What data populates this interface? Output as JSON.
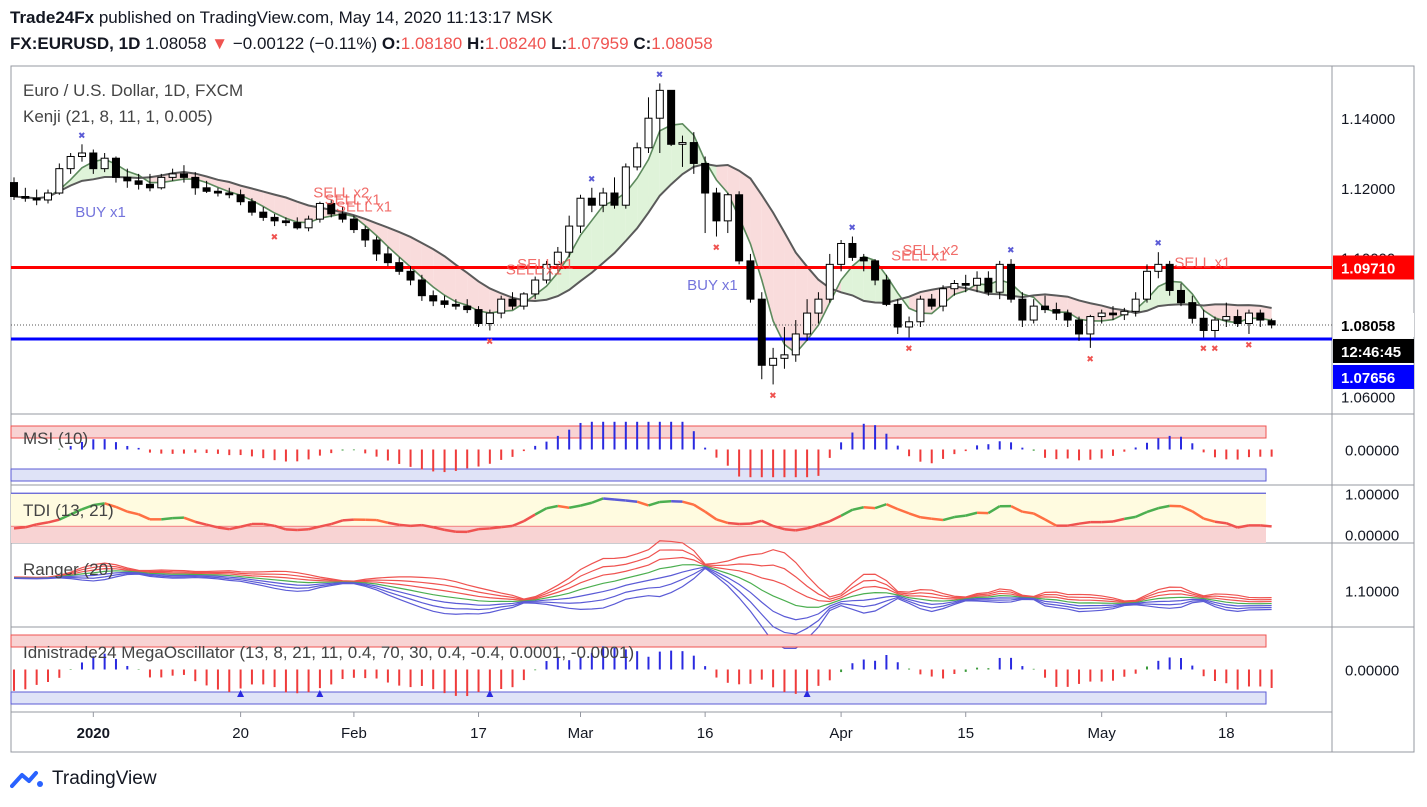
{
  "header": {
    "publisher": "Trade24Fx",
    "published_text": "published on TradingView.com, May 14, 2020 11:13:17 MSK",
    "symbol": "FX:EURUSD, 1D",
    "last": "1.08058",
    "change": "−0.00122 (−0.11%)",
    "o_label": "O:",
    "o_value": "1.08180",
    "h_label": "H:",
    "h_value": "1.08240",
    "l_label": "L:",
    "l_value": "1.07959",
    "c_label": "C:",
    "c_value": "1.08058"
  },
  "colors": {
    "up": "#ffffff",
    "down": "#000000",
    "red": "#ef5350",
    "blue": "#2962ff",
    "resistance": "#ff0000",
    "support": "#0000ff",
    "signal_blue": "#5b5bd6"
  },
  "footer": {
    "brand": "TradingView",
    "icon": "tradingview-logo-icon"
  },
  "chart_data": [
    {
      "type": "candlestick",
      "title": "Euro / U.S. Dollar, 1D, FXCM",
      "indicator": "Kenji (21, 8, 11, 1, 0.005)",
      "ylim": [
        1.055,
        1.155
      ],
      "y_ticks": [
        "1.14000",
        "1.12000",
        "1.10000",
        "1.08000",
        "1.06000"
      ],
      "x_ticks": [
        {
          "label": "2020",
          "i": 7
        },
        {
          "label": "20",
          "i": 20
        },
        {
          "label": "Feb",
          "i": 30
        },
        {
          "label": "17",
          "i": 41
        },
        {
          "label": "Mar",
          "i": 50
        },
        {
          "label": "16",
          "i": 61
        },
        {
          "label": "Apr",
          "i": 73
        },
        {
          "label": "15",
          "i": 84
        },
        {
          "label": "May",
          "i": 96
        },
        {
          "label": "18",
          "i": 107
        }
      ],
      "resistance": {
        "value": 1.0971,
        "label": "1.09710"
      },
      "support": {
        "value": 1.07656,
        "label": "1.07656"
      },
      "last_price": {
        "value": 1.08058,
        "label": "1.08058",
        "countdown": "12:46:45"
      },
      "ohlc": [
        [
          1.1215,
          1.123,
          1.1165,
          1.1175
        ],
        [
          1.1175,
          1.12,
          1.116,
          1.117
        ],
        [
          1.117,
          1.1195,
          1.115,
          1.1165
        ],
        [
          1.1165,
          1.1195,
          1.1155,
          1.1185
        ],
        [
          1.1185,
          1.127,
          1.118,
          1.1255
        ],
        [
          1.1255,
          1.13,
          1.124,
          1.129
        ],
        [
          1.129,
          1.1325,
          1.1275,
          1.13
        ],
        [
          1.13,
          1.131,
          1.124,
          1.1255
        ],
        [
          1.1255,
          1.13,
          1.1245,
          1.1285
        ],
        [
          1.1285,
          1.129,
          1.1215,
          1.123
        ],
        [
          1.123,
          1.1255,
          1.12,
          1.122
        ],
        [
          1.122,
          1.124,
          1.1195,
          1.121
        ],
        [
          1.121,
          1.124,
          1.119,
          1.12
        ],
        [
          1.12,
          1.124,
          1.1195,
          1.123
        ],
        [
          1.123,
          1.1255,
          1.122,
          1.124
        ],
        [
          1.124,
          1.1265,
          1.1215,
          1.123
        ],
        [
          1.123,
          1.1245,
          1.118,
          1.12
        ],
        [
          1.12,
          1.122,
          1.1185,
          1.119
        ],
        [
          1.119,
          1.12,
          1.1175,
          1.1185
        ],
        [
          1.1185,
          1.12,
          1.117,
          1.118
        ],
        [
          1.118,
          1.1195,
          1.115,
          1.116
        ],
        [
          1.116,
          1.117,
          1.112,
          1.113
        ],
        [
          1.113,
          1.1145,
          1.1105,
          1.1115
        ],
        [
          1.1115,
          1.1125,
          1.109,
          1.1105
        ],
        [
          1.1105,
          1.1115,
          1.109,
          1.11
        ],
        [
          1.11,
          1.1115,
          1.108,
          1.1085
        ],
        [
          1.1085,
          1.112,
          1.1075,
          1.111
        ],
        [
          1.111,
          1.116,
          1.11,
          1.1155
        ],
        [
          1.1155,
          1.1165,
          1.1115,
          1.1125
        ],
        [
          1.1125,
          1.1145,
          1.11,
          1.111
        ],
        [
          1.111,
          1.112,
          1.107,
          1.108
        ],
        [
          1.108,
          1.109,
          1.103,
          1.105
        ],
        [
          1.105,
          1.106,
          1.099,
          1.101
        ],
        [
          1.101,
          1.103,
          1.0975,
          1.0985
        ],
        [
          1.0985,
          1.1,
          1.095,
          1.096
        ],
        [
          1.096,
          1.0975,
          1.092,
          1.0935
        ],
        [
          1.0935,
          1.095,
          1.0875,
          1.089
        ],
        [
          1.089,
          1.0905,
          1.086,
          1.0875
        ],
        [
          1.0875,
          1.089,
          1.0855,
          1.0865
        ],
        [
          1.0865,
          1.088,
          1.085,
          1.086
        ],
        [
          1.086,
          1.088,
          1.084,
          1.085
        ],
        [
          1.085,
          1.086,
          1.08,
          1.081
        ],
        [
          1.081,
          1.085,
          1.079,
          1.084
        ],
        [
          1.084,
          1.089,
          1.0825,
          1.088
        ],
        [
          1.088,
          1.09,
          1.085,
          1.086
        ],
        [
          1.086,
          1.09,
          1.085,
          1.0895
        ],
        [
          1.0895,
          1.0945,
          1.088,
          1.0935
        ],
        [
          1.0935,
          1.099,
          1.0925,
          1.098
        ],
        [
          1.098,
          1.103,
          1.096,
          1.1015
        ],
        [
          1.1015,
          1.112,
          1.1,
          1.109
        ],
        [
          1.109,
          1.118,
          1.107,
          1.117
        ],
        [
          1.117,
          1.12,
          1.113,
          1.115
        ],
        [
          1.115,
          1.12,
          1.113,
          1.1185
        ],
        [
          1.1185,
          1.123,
          1.114,
          1.115
        ],
        [
          1.115,
          1.127,
          1.114,
          1.126
        ],
        [
          1.126,
          1.133,
          1.125,
          1.1315
        ],
        [
          1.1315,
          1.146,
          1.13,
          1.14
        ],
        [
          1.14,
          1.15,
          1.13,
          1.148
        ],
        [
          1.148,
          1.147,
          1.132,
          1.1325
        ],
        [
          1.1325,
          1.135,
          1.126,
          1.133
        ],
        [
          1.133,
          1.136,
          1.124,
          1.127
        ],
        [
          1.127,
          1.129,
          1.107,
          1.1185
        ],
        [
          1.1185,
          1.12,
          1.106,
          1.1105
        ],
        [
          1.1105,
          1.1185,
          1.107,
          1.118
        ],
        [
          1.118,
          1.119,
          1.098,
          1.099
        ],
        [
          1.099,
          1.101,
          1.087,
          1.088
        ],
        [
          1.088,
          1.09,
          1.065,
          1.069
        ],
        [
          1.069,
          1.074,
          1.0635,
          1.071
        ],
        [
          1.071,
          1.08,
          1.068,
          1.072
        ],
        [
          1.072,
          1.082,
          1.07,
          1.078
        ],
        [
          1.078,
          1.088,
          1.076,
          1.084
        ],
        [
          1.084,
          1.09,
          1.081,
          1.088
        ],
        [
          1.088,
          1.101,
          1.087,
          1.098
        ],
        [
          1.098,
          1.105,
          1.096,
          1.104
        ],
        [
          1.104,
          1.106,
          1.099,
          1.1
        ],
        [
          1.1,
          1.101,
          1.096,
          1.099
        ],
        [
          1.099,
          1.0995,
          1.092,
          1.0935
        ],
        [
          1.0935,
          1.095,
          1.086,
          1.0865
        ],
        [
          1.0865,
          1.088,
          1.078,
          1.08
        ],
        [
          1.08,
          1.083,
          1.077,
          1.0815
        ],
        [
          1.0815,
          1.089,
          1.08,
          1.088
        ],
        [
          1.088,
          1.0895,
          1.085,
          1.086
        ],
        [
          1.086,
          1.092,
          1.0845,
          1.091
        ],
        [
          1.091,
          1.0935,
          1.089,
          1.0925
        ],
        [
          1.0925,
          1.095,
          1.09,
          1.092
        ],
        [
          1.092,
          1.096,
          1.09,
          1.094
        ],
        [
          1.094,
          1.096,
          1.089,
          1.09
        ],
        [
          1.09,
          1.099,
          1.088,
          1.098
        ],
        [
          1.098,
          1.0995,
          1.087,
          1.088
        ],
        [
          1.088,
          1.09,
          1.08,
          1.082
        ],
        [
          1.082,
          1.088,
          1.081,
          1.086
        ],
        [
          1.086,
          1.089,
          1.084,
          1.085
        ],
        [
          1.085,
          1.087,
          1.082,
          1.084
        ],
        [
          1.084,
          1.085,
          1.08,
          1.082
        ],
        [
          1.082,
          1.083,
          1.076,
          1.078
        ],
        [
          1.078,
          1.0835,
          1.074,
          1.083
        ],
        [
          1.083,
          1.085,
          1.081,
          1.084
        ],
        [
          1.084,
          1.086,
          1.082,
          1.0835
        ],
        [
          1.0835,
          1.0855,
          1.082,
          1.0845
        ],
        [
          1.0845,
          1.09,
          1.083,
          1.088
        ],
        [
          1.088,
          1.098,
          1.087,
          1.096
        ],
        [
          1.096,
          1.1015,
          1.094,
          1.098
        ],
        [
          1.098,
          1.099,
          1.089,
          1.0905
        ],
        [
          1.0905,
          1.0925,
          1.086,
          1.087
        ],
        [
          1.087,
          1.089,
          1.081,
          1.0825
        ],
        [
          1.0825,
          1.085,
          1.077,
          1.079
        ],
        [
          1.079,
          1.083,
          1.077,
          1.082
        ],
        [
          1.082,
          1.087,
          1.08,
          1.083
        ],
        [
          1.083,
          1.085,
          1.08,
          1.081
        ],
        [
          1.081,
          1.085,
          1.078,
          1.084
        ],
        [
          1.084,
          1.085,
          1.08,
          1.082
        ],
        [
          1.0818,
          1.0824,
          1.0796,
          1.0806
        ]
      ],
      "signals": [
        {
          "i": 7,
          "label": "BUY x1",
          "side": "buy",
          "value": 1.1185
        },
        {
          "i": 28,
          "label": "SELL x2",
          "side": "sell",
          "value": 1.116
        },
        {
          "i": 29,
          "label": "SELL x1",
          "side": "sell",
          "value": 1.114
        },
        {
          "i": 30,
          "label": "SELL x1",
          "side": "sell",
          "value": 1.112
        },
        {
          "i": 46,
          "label": "SELL x1",
          "side": "sell",
          "value": 1.0955
        },
        {
          "i": 45,
          "label": "SELL x1",
          "side": "sell",
          "value": 1.094
        },
        {
          "i": 61,
          "label": "BUY x1",
          "side": "buy",
          "value": 1.0975
        },
        {
          "i": 80,
          "label": "SELL x2",
          "side": "sell",
          "value": 1.0995
        },
        {
          "i": 79,
          "label": "SELL x1",
          "side": "sell",
          "value": 1.098
        },
        {
          "i": 104,
          "label": "SELL x1",
          "side": "sell",
          "value": 1.096
        }
      ]
    },
    {
      "type": "bar",
      "title": "MSI (10)",
      "ylim": [
        -0.025,
        0.025
      ],
      "y_ticks": [
        "0.00000"
      ]
    },
    {
      "type": "line",
      "title": "TDI (13, 21)",
      "ylim": [
        -0.2,
        1.2
      ],
      "y_ticks": [
        "1.00000",
        "0.00000"
      ]
    },
    {
      "type": "line",
      "title": "Ranger (20)",
      "ylim": [
        1.05,
        1.165
      ],
      "y_ticks": [
        "1.10000"
      ]
    },
    {
      "type": "bar",
      "title": "Idnistrade24 MegaOscillator (13, 8, 21, 11, 0.4, 70, 30, 0.4, -0.4, 0.0001, -0.0001)",
      "ylim": [
        -0.025,
        0.025
      ],
      "y_ticks": [
        "0.00000"
      ]
    }
  ]
}
